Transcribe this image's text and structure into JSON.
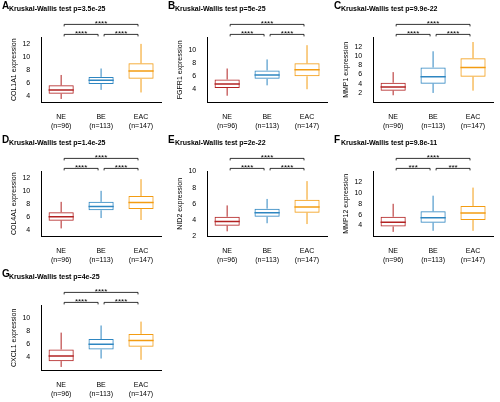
{
  "chart_data": [
    {
      "type": "box",
      "panel": "A",
      "title": "Kruskal-Wallis test p=3.5e-25",
      "y_label": "COL1A1 expression",
      "categories": [
        "NE\n(n=96)",
        "BE\n(n=113)",
        "EAC\n(n=147)"
      ],
      "colors": [
        "#b22222",
        "#2e86c1",
        "#f39c12"
      ],
      "boxes": [
        {
          "min": 3.5,
          "q1": 4.3,
          "median": 4.9,
          "q3": 5.6,
          "max": 7.2
        },
        {
          "min": 4.9,
          "q1": 5.8,
          "median": 6.4,
          "q3": 6.9,
          "max": 8.2
        },
        {
          "min": 4.5,
          "q1": 6.6,
          "median": 7.8,
          "q3": 9.0,
          "max": 12.0
        }
      ],
      "comparisons": [
        {
          "pair": [
            0,
            1
          ],
          "label": "****"
        },
        {
          "pair": [
            1,
            2
          ],
          "label": "****"
        },
        {
          "pair": [
            0,
            2
          ],
          "label": "****"
        }
      ],
      "ylim": [
        3,
        13
      ],
      "yticks": [
        4,
        6,
        8,
        10,
        12
      ],
      "grid": false
    },
    {
      "type": "box",
      "panel": "B",
      "title": "Kruskal-Wallis test p=5e-25",
      "y_label": "FGFR1 expression",
      "categories": [
        "NE\n(n=96)",
        "BE\n(n=113)",
        "EAC\n(n=147)"
      ],
      "colors": [
        "#b22222",
        "#2e86c1",
        "#f39c12"
      ],
      "boxes": [
        {
          "min": 3.0,
          "q1": 4.2,
          "median": 4.8,
          "q3": 5.5,
          "max": 7.2
        },
        {
          "min": 4.6,
          "q1": 5.6,
          "median": 6.2,
          "q3": 6.9,
          "max": 8.6
        },
        {
          "min": 4.0,
          "q1": 6.0,
          "median": 7.0,
          "q3": 8.0,
          "max": 10.8
        }
      ],
      "comparisons": [
        {
          "pair": [
            0,
            1
          ],
          "label": "****"
        },
        {
          "pair": [
            1,
            2
          ],
          "label": "****"
        },
        {
          "pair": [
            0,
            2
          ],
          "label": "****"
        }
      ],
      "ylim": [
        2,
        12
      ],
      "yticks": [
        4,
        6,
        8,
        10
      ],
      "grid": false
    },
    {
      "type": "box",
      "panel": "C",
      "title": "Kruskal-Wallis test p=9.9e-22",
      "y_label": "MMP1 expression",
      "categories": [
        "NE\n(n=96)",
        "BE\n(n=113)",
        "EAC\n(n=147)"
      ],
      "colors": [
        "#b22222",
        "#2e86c1",
        "#f39c12"
      ],
      "boxes": [
        {
          "min": 1.5,
          "q1": 2.5,
          "median": 3.3,
          "q3": 4.2,
          "max": 6.5
        },
        {
          "min": 2.0,
          "q1": 4.0,
          "median": 5.5,
          "q3": 7.5,
          "max": 11.0
        },
        {
          "min": 2.5,
          "q1": 5.5,
          "median": 7.5,
          "q3": 9.5,
          "max": 13.0
        }
      ],
      "comparisons": [
        {
          "pair": [
            0,
            1
          ],
          "label": "****"
        },
        {
          "pair": [
            1,
            2
          ],
          "label": "****"
        },
        {
          "pair": [
            0,
            2
          ],
          "label": "****"
        }
      ],
      "ylim": [
        0,
        14
      ],
      "yticks": [
        2,
        4,
        6,
        8,
        10,
        12
      ],
      "grid": false
    },
    {
      "type": "box",
      "panel": "D",
      "title": "Kruskal-Wallis test p=1.4e-25",
      "y_label": "COL4A1 expression",
      "categories": [
        "NE\n(n=96)",
        "BE\n(n=113)",
        "EAC\n(n=147)"
      ],
      "colors": [
        "#b22222",
        "#2e86c1",
        "#f39c12"
      ],
      "boxes": [
        {
          "min": 4.2,
          "q1": 5.4,
          "median": 6.0,
          "q3": 6.7,
          "max": 8.3
        },
        {
          "min": 5.8,
          "q1": 7.0,
          "median": 7.6,
          "q3": 8.3,
          "max": 10.0
        },
        {
          "min": 5.5,
          "q1": 7.2,
          "median": 8.2,
          "q3": 9.2,
          "max": 11.8
        }
      ],
      "comparisons": [
        {
          "pair": [
            0,
            1
          ],
          "label": "****"
        },
        {
          "pair": [
            1,
            2
          ],
          "label": "****"
        },
        {
          "pair": [
            0,
            2
          ],
          "label": "****"
        }
      ],
      "ylim": [
        3,
        13
      ],
      "yticks": [
        4,
        6,
        8,
        10,
        12
      ],
      "grid": false
    },
    {
      "type": "box",
      "panel": "E",
      "title": "Kruskal-Wallis test p=2e-22",
      "y_label": "NID2 expression",
      "categories": [
        "NE\n(n=96)",
        "BE\n(n=113)",
        "EAC\n(n=147)"
      ],
      "colors": [
        "#b22222",
        "#2e86c1",
        "#f39c12"
      ],
      "boxes": [
        {
          "min": 2.6,
          "q1": 3.3,
          "median": 3.8,
          "q3": 4.4,
          "max": 5.8
        },
        {
          "min": 3.6,
          "q1": 4.4,
          "median": 4.9,
          "q3": 5.4,
          "max": 6.6
        },
        {
          "min": 3.5,
          "q1": 4.9,
          "median": 5.6,
          "q3": 6.5,
          "max": 8.8
        }
      ],
      "comparisons": [
        {
          "pair": [
            0,
            1
          ],
          "label": "****"
        },
        {
          "pair": [
            1,
            2
          ],
          "label": "****"
        },
        {
          "pair": [
            0,
            2
          ],
          "label": "****"
        }
      ],
      "ylim": [
        2,
        10
      ],
      "yticks": [
        2,
        4,
        6,
        8,
        10
      ],
      "grid": false
    },
    {
      "type": "box",
      "panel": "F",
      "title": "Kruskal-Wallis test p=9.8e-11",
      "y_label": "MMP12 expression",
      "categories": [
        "NE\n(n=96)",
        "BE\n(n=113)",
        "EAC\n(n=147)"
      ],
      "colors": [
        "#b22222",
        "#2e86c1",
        "#f39c12"
      ],
      "boxes": [
        {
          "min": 2.8,
          "q1": 3.8,
          "median": 4.6,
          "q3": 5.6,
          "max": 8.0
        },
        {
          "min": 3.0,
          "q1": 4.5,
          "median": 5.4,
          "q3": 6.6,
          "max": 9.5
        },
        {
          "min": 3.0,
          "q1": 5.0,
          "median": 6.3,
          "q3": 7.6,
          "max": 11.0
        }
      ],
      "comparisons": [
        {
          "pair": [
            0,
            1
          ],
          "label": "***"
        },
        {
          "pair": [
            1,
            2
          ],
          "label": "***"
        },
        {
          "pair": [
            0,
            2
          ],
          "label": "****"
        }
      ],
      "ylim": [
        2,
        14
      ],
      "yticks": [
        4,
        6,
        8,
        10,
        12
      ],
      "grid": false
    },
    {
      "type": "box",
      "panel": "G",
      "title": "Kruskal-Wallis test p=4e-25",
      "y_label": "CXCL1 expression",
      "categories": [
        "NE\n(n=96)",
        "BE\n(n=113)",
        "EAC\n(n=147)"
      ],
      "colors": [
        "#b22222",
        "#2e86c1",
        "#f39c12"
      ],
      "boxes": [
        {
          "min": 2.5,
          "q1": 3.4,
          "median": 4.2,
          "q3": 5.2,
          "max": 7.8
        },
        {
          "min": 3.8,
          "q1": 5.2,
          "median": 6.0,
          "q3": 6.8,
          "max": 8.9
        },
        {
          "min": 3.6,
          "q1": 5.6,
          "median": 6.6,
          "q3": 7.6,
          "max": 9.5
        }
      ],
      "comparisons": [
        {
          "pair": [
            0,
            1
          ],
          "label": "****"
        },
        {
          "pair": [
            1,
            2
          ],
          "label": "****"
        },
        {
          "pair": [
            0,
            2
          ],
          "label": "****"
        }
      ],
      "ylim": [
        2,
        12
      ],
      "yticks": [
        4,
        6,
        8,
        10
      ],
      "grid": false
    }
  ]
}
